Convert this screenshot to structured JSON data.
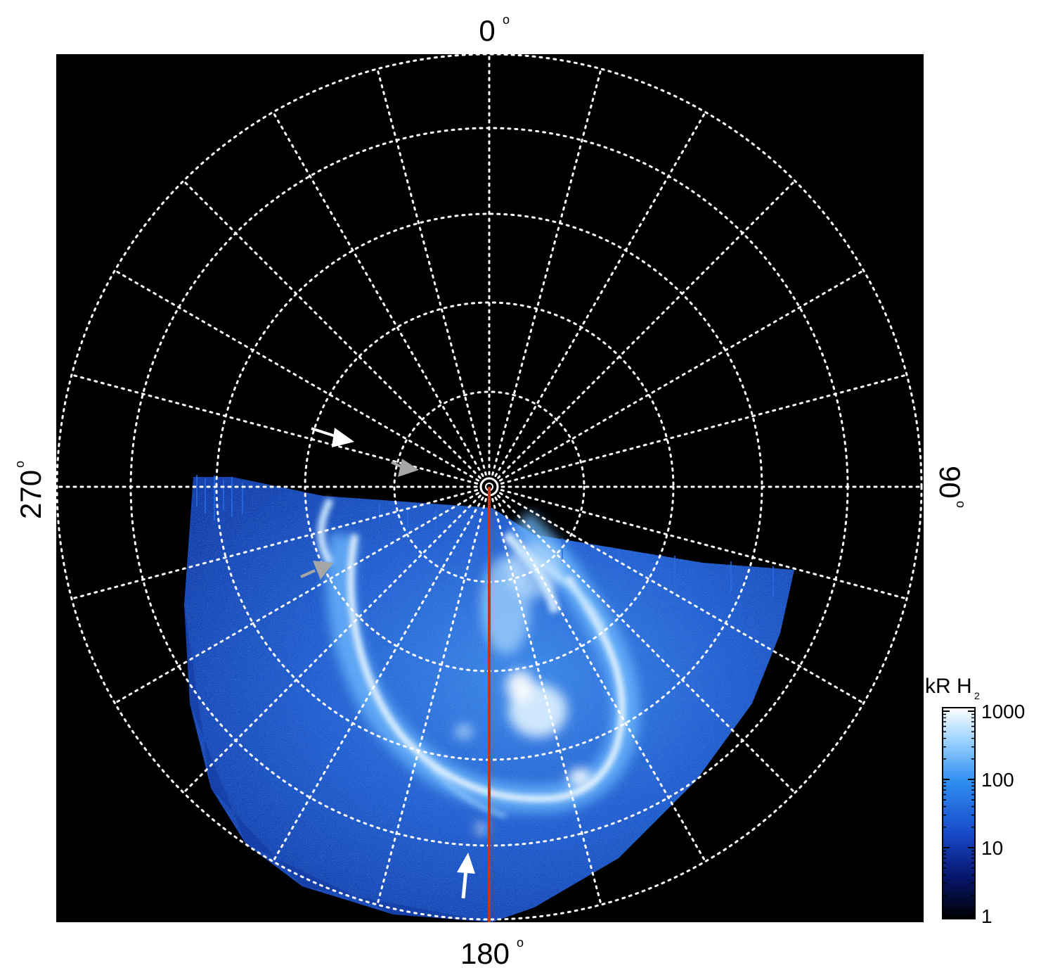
{
  "image": {
    "description": "Polar projection of a planetary ultraviolet aurora (false-colour blue) with latitude/longitude grid, longitude labels, annotation arrows and a colour bar.",
    "background_color": "#000000",
    "grid_color": "#ffffff",
    "meridian_line_color": "#c0391b"
  },
  "longitude_labels": {
    "top": "0",
    "right": "90",
    "bottom": "180",
    "left": "270",
    "degree_symbol": "o"
  },
  "colorbar": {
    "title": "kR H",
    "title_subscript": "2",
    "ticks": [
      "1000",
      "100",
      "10",
      "1"
    ],
    "scale": "log",
    "colors": [
      "#ffffff",
      "#62b9ff",
      "#1a5fe0",
      "#0a1f9a",
      "#000000"
    ]
  },
  "arrows": [
    {
      "color": "#ffffff",
      "name": "white-arrow-upper-left"
    },
    {
      "color": "#a6a6a6",
      "name": "gray-arrow-near-pole"
    },
    {
      "color": "#a6a6a6",
      "name": "gray-arrow-left-oval"
    },
    {
      "color": "#ffffff",
      "name": "white-arrow-bottom"
    }
  ]
}
